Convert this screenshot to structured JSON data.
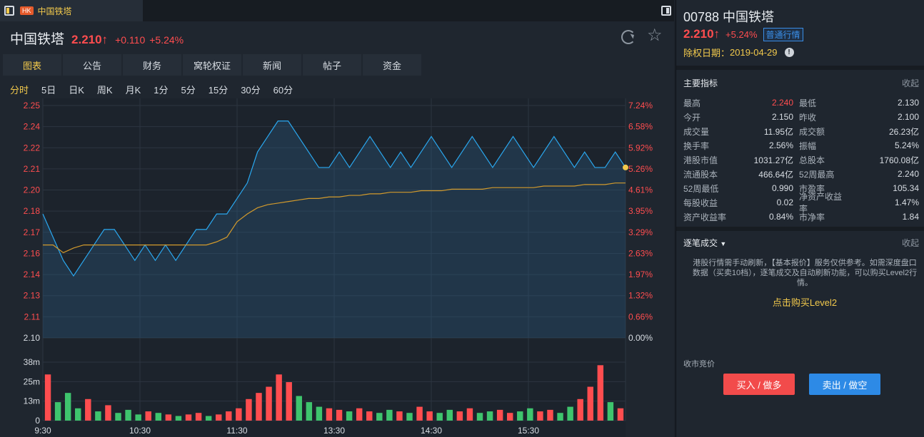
{
  "tab": {
    "market": "HK",
    "name": "中国铁塔"
  },
  "header": {
    "name": "中国铁塔",
    "price": "2.210↑",
    "change": "+0.110",
    "change_pct": "+5.24%"
  },
  "nav_tabs": [
    "图表",
    "公告",
    "财务",
    "窝轮权证",
    "新闻",
    "帖子",
    "资金"
  ],
  "periods": [
    "分时",
    "5日",
    "日K",
    "周K",
    "月K",
    "1分",
    "5分",
    "15分",
    "30分",
    "60分"
  ],
  "right": {
    "title": "00788 中国铁塔",
    "price": "2.210↑",
    "change_pct": "+5.24%",
    "badge": "普通行情",
    "ex_date_label": "除权日期：",
    "ex_date": "2019-04-29",
    "indicators_title": "主要指标",
    "collapse": "收起",
    "stats": [
      [
        "最高",
        "2.240",
        "最低",
        "2.130"
      ],
      [
        "今开",
        "2.150",
        "昨收",
        "2.100"
      ],
      [
        "成交量",
        "11.95亿",
        "成交额",
        "26.23亿"
      ],
      [
        "换手率",
        "2.56%",
        "振幅",
        "5.24%"
      ],
      [
        "港股市值",
        "1031.27亿",
        "总股本",
        "1760.08亿"
      ],
      [
        "流通股本",
        "466.64亿",
        "52周最高",
        "2.240"
      ],
      [
        "52周最低",
        "0.990",
        "市盈率",
        "105.34"
      ],
      [
        "每股收益",
        "0.02",
        "净资产收益率",
        "1.47%"
      ],
      [
        "资产收益率",
        "0.84%",
        "市净率",
        "1.84"
      ]
    ],
    "ticks_title": "逐笔成交",
    "ticks_collapse": "收起",
    "notice": "港股行情需手动刷新，【基本报价】服务仅供参考。如需深度盘口数据（买卖10档），逐笔成交及自动刷新功能，可以购买Level2行情。",
    "buy_level2": "点击购买Level2",
    "auction": "收市竞价",
    "buy_button": "买入 / 做多",
    "sell_button": "卖出 / 做空"
  },
  "colors": {
    "up": "#ff4d4f",
    "down": "#3ec46d",
    "price_line": "#2aa8f0",
    "avg_line": "#d29a2c",
    "accent": "#f2c94c"
  },
  "chart_data": {
    "type": "line",
    "y_labels": [
      "2.25",
      "2.24",
      "2.22",
      "2.21",
      "2.20",
      "2.18",
      "2.17",
      "2.16",
      "2.14",
      "2.13",
      "2.11",
      "2.10"
    ],
    "ylim": [
      2.1,
      2.25
    ],
    "pct_labels": [
      "7.24%",
      "6.58%",
      "5.92%",
      "5.26%",
      "4.61%",
      "3.95%",
      "3.29%",
      "2.63%",
      "1.97%",
      "1.32%",
      "0.66%",
      "0.00%"
    ],
    "x_labels": [
      "9:30",
      "10:30",
      "11:30",
      "13:30",
      "14:30",
      "15:30"
    ],
    "series": [
      {
        "values": [
          2.18,
          2.165,
          2.15,
          2.14,
          2.15,
          2.16,
          2.17,
          2.17,
          2.16,
          2.15,
          2.16,
          2.15,
          2.16,
          2.15,
          2.16,
          2.17,
          2.17,
          2.18,
          2.18,
          2.19,
          2.2,
          2.22,
          2.23,
          2.24,
          2.24,
          2.23,
          2.22,
          2.21,
          2.21,
          2.22,
          2.21,
          2.22,
          2.23,
          2.22,
          2.21,
          2.22,
          2.21,
          2.22,
          2.23,
          2.22,
          2.21,
          2.22,
          2.23,
          2.22,
          2.21,
          2.22,
          2.23,
          2.22,
          2.21,
          2.22,
          2.23,
          2.22,
          2.21,
          2.22,
          2.21,
          2.21,
          2.22,
          2.21
        ]
      },
      {
        "values": [
          2.16,
          2.16,
          2.155,
          2.158,
          2.16,
          2.16,
          2.16,
          2.16,
          2.16,
          2.16,
          2.16,
          2.16,
          2.16,
          2.16,
          2.16,
          2.16,
          2.16,
          2.162,
          2.165,
          2.175,
          2.18,
          2.184,
          2.186,
          2.187,
          2.188,
          2.189,
          2.19,
          2.19,
          2.191,
          2.191,
          2.192,
          2.192,
          2.193,
          2.193,
          2.194,
          2.194,
          2.194,
          2.195,
          2.195,
          2.195,
          2.196,
          2.196,
          2.196,
          2.196,
          2.197,
          2.197,
          2.197,
          2.197,
          2.197,
          2.198,
          2.198,
          2.198,
          2.198,
          2.199,
          2.199,
          2.199,
          2.2,
          2.2
        ]
      }
    ],
    "volume": {
      "y_labels": [
        "38m",
        "25m",
        "13m",
        "0"
      ],
      "ylim": [
        0,
        38
      ],
      "values": [
        30,
        12,
        18,
        8,
        14,
        6,
        10,
        5,
        7,
        4,
        6,
        5,
        4,
        3,
        4,
        5,
        3,
        4,
        6,
        8,
        14,
        18,
        22,
        30,
        25,
        16,
        12,
        9,
        8,
        7,
        6,
        8,
        6,
        5,
        7,
        6,
        5,
        9,
        6,
        5,
        7,
        6,
        8,
        5,
        6,
        7,
        5,
        6,
        8,
        6,
        7,
        5,
        9,
        14,
        22,
        36,
        12,
        8
      ],
      "up": [
        1,
        0,
        0,
        0,
        1,
        0,
        1,
        0,
        0,
        0,
        1,
        0,
        1,
        0,
        1,
        1,
        0,
        1,
        1,
        1,
        1,
        1,
        1,
        1,
        1,
        0,
        0,
        0,
        1,
        1,
        0,
        1,
        1,
        0,
        0,
        1,
        0,
        1,
        1,
        0,
        0,
        1,
        1,
        0,
        0,
        1,
        1,
        0,
        0,
        1,
        1,
        0,
        0,
        1,
        1,
        1,
        0,
        1
      ]
    }
  }
}
